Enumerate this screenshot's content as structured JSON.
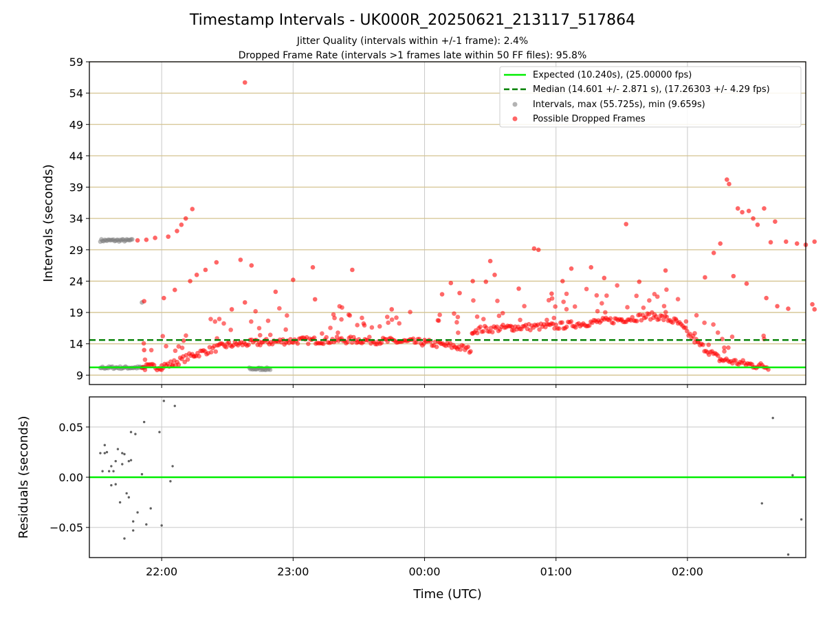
{
  "chart_data": [
    {
      "type": "scatter",
      "title": "Timestamp Intervals - UK000R_20250621_213117_517864",
      "subtitle_lines": [
        "Jitter Quality (intervals within +/-1 frame): 2.4%",
        "Dropped Frame Rate (intervals >1 frames late within 50 FF files): 95.8%"
      ],
      "ylabel": "Intervals (seconds)",
      "ylim": [
        7.5,
        59
      ],
      "yticks": [
        "59",
        "54",
        "49",
        "44",
        "39",
        "34",
        "29",
        "24",
        "19",
        "14",
        "9"
      ],
      "xlim_hours": [
        21.45,
        26.9
      ],
      "x_axis_gridlines_only": true,
      "grid": true,
      "legend_placement": "top-right",
      "legend": [
        "Expected (10.240s), (25.00000 fps)",
        "Median (14.601 +/- 2.871 s), (17.26303 +/- 4.29 fps)",
        "Intervals, max (55.725s), min (9.659s)",
        "Possible Dropped Frames"
      ],
      "expected_line": 10.24,
      "median_line": 14.601,
      "colors": {
        "expected": "#00ee00",
        "median": "#007f00",
        "intervals": "#808080",
        "dropped": "#ff0000",
        "hgrid": "#d4c38f",
        "vgrid": "#c8c8c8"
      },
      "series": [
        {
          "name": "Intervals, max (55.725s), min (9.659s)",
          "segments": [
            {
              "x0": "21:32",
              "x1": "21:47",
              "y": 30.5
            },
            {
              "x0": "21:32",
              "x1": "21:53",
              "y": 10.2
            },
            {
              "x0": "22:40",
              "x1": "22:50",
              "y": 10.0
            }
          ],
          "points": [
            {
              "x": "21:51",
              "y": 20.6
            }
          ]
        },
        {
          "name": "Possible Dropped Frames",
          "trend": [
            {
              "x": "21:51",
              "y": 10.2
            },
            {
              "x": "22:00",
              "y": 10.4
            },
            {
              "x": "22:05",
              "y": 10.8
            },
            {
              "x": "22:15",
              "y": 12.3
            },
            {
              "x": "22:30",
              "y": 13.8
            },
            {
              "x": "22:45",
              "y": 14.2
            },
            {
              "x": "23:00",
              "y": 14.5
            },
            {
              "x": "23:30",
              "y": 14.6
            },
            {
              "x": "00:00",
              "y": 14.2
            },
            {
              "x": "00:15",
              "y": 13.5
            },
            {
              "x": "00:21",
              "y": 13.0
            },
            {
              "x": "00:22",
              "y": 16.2
            },
            {
              "x": "00:40",
              "y": 16.6
            },
            {
              "x": "01:00",
              "y": 16.8
            },
            {
              "x": "01:30",
              "y": 17.9
            },
            {
              "x": "01:45",
              "y": 18.5
            },
            {
              "x": "01:55",
              "y": 17.5
            },
            {
              "x": "02:05",
              "y": 14.0
            },
            {
              "x": "02:15",
              "y": 11.5
            },
            {
              "x": "02:30",
              "y": 10.6
            },
            {
              "x": "02:37",
              "y": 10.3
            }
          ],
          "points": [
            {
              "x": "21:49",
              "y": 30.5
            },
            {
              "x": "21:53",
              "y": 30.6
            },
            {
              "x": "21:57",
              "y": 30.9
            },
            {
              "x": "22:03",
              "y": 31.1
            },
            {
              "x": "22:07",
              "y": 32.0
            },
            {
              "x": "22:09",
              "y": 33.0
            },
            {
              "x": "22:11",
              "y": 34.0
            },
            {
              "x": "22:14",
              "y": 35.5
            },
            {
              "x": "22:38",
              "y": 55.7
            },
            {
              "x": "21:52",
              "y": 20.8
            },
            {
              "x": "21:52",
              "y": 13.0
            },
            {
              "x": "22:01",
              "y": 21.3
            },
            {
              "x": "22:06",
              "y": 22.6
            },
            {
              "x": "22:10",
              "y": 14.5
            },
            {
              "x": "22:13",
              "y": 24.0
            },
            {
              "x": "22:16",
              "y": 25.0
            },
            {
              "x": "22:20",
              "y": 25.8
            },
            {
              "x": "22:25",
              "y": 27.0
            },
            {
              "x": "22:32",
              "y": 19.5
            },
            {
              "x": "22:36",
              "y": 27.4
            },
            {
              "x": "22:38",
              "y": 20.6
            },
            {
              "x": "22:41",
              "y": 26.5
            },
            {
              "x": "22:52",
              "y": 22.3
            },
            {
              "x": "23:00",
              "y": 24.2
            },
            {
              "x": "23:09",
              "y": 26.2
            },
            {
              "x": "23:10",
              "y": 21.1
            },
            {
              "x": "23:27",
              "y": 25.8
            },
            {
              "x": "23:45",
              "y": 19.5
            },
            {
              "x": "00:08",
              "y": 21.9
            },
            {
              "x": "00:12",
              "y": 23.7
            },
            {
              "x": "00:16",
              "y": 22.1
            },
            {
              "x": "00:22",
              "y": 24.0
            },
            {
              "x": "00:28",
              "y": 23.9
            },
            {
              "x": "00:30",
              "y": 27.2
            },
            {
              "x": "00:32",
              "y": 25.0
            },
            {
              "x": "00:43",
              "y": 22.8
            },
            {
              "x": "00:50",
              "y": 29.2
            },
            {
              "x": "00:52",
              "y": 29.0
            },
            {
              "x": "00:58",
              "y": 22.0
            },
            {
              "x": "01:03",
              "y": 24.0
            },
            {
              "x": "01:07",
              "y": 26.0
            },
            {
              "x": "01:16",
              "y": 26.2
            },
            {
              "x": "01:22",
              "y": 24.5
            },
            {
              "x": "01:32",
              "y": 33.1
            },
            {
              "x": "01:38",
              "y": 23.9
            },
            {
              "x": "01:50",
              "y": 25.7
            },
            {
              "x": "02:08",
              "y": 24.6
            },
            {
              "x": "02:12",
              "y": 28.5
            },
            {
              "x": "02:15",
              "y": 30.0
            },
            {
              "x": "02:18",
              "y": 40.2
            },
            {
              "x": "02:19",
              "y": 39.5
            },
            {
              "x": "02:21",
              "y": 24.8
            },
            {
              "x": "02:23",
              "y": 35.6
            },
            {
              "x": "02:25",
              "y": 35.0
            },
            {
              "x": "02:27",
              "y": 23.6
            },
            {
              "x": "02:28",
              "y": 35.2
            },
            {
              "x": "02:30",
              "y": 34.0
            },
            {
              "x": "02:32",
              "y": 33.0
            },
            {
              "x": "02:35",
              "y": 35.6
            },
            {
              "x": "02:36",
              "y": 21.3
            },
            {
              "x": "02:38",
              "y": 30.2
            },
            {
              "x": "02:40",
              "y": 33.5
            },
            {
              "x": "02:45",
              "y": 30.3
            },
            {
              "x": "02:50",
              "y": 30.0
            },
            {
              "x": "02:54",
              "y": 29.8
            },
            {
              "x": "02:58",
              "y": 30.3
            },
            {
              "x": "02:41",
              "y": 20.0
            },
            {
              "x": "02:46",
              "y": 19.6
            },
            {
              "x": "02:57",
              "y": 20.3
            },
            {
              "x": "02:58",
              "y": 19.5
            }
          ]
        }
      ]
    },
    {
      "type": "scatter",
      "title": "",
      "xlabel": "Time (UTC)",
      "ylabel": "Residuals (seconds)",
      "ylim": [
        -0.08,
        0.08
      ],
      "yticks": [
        "0.05",
        "0.00",
        "−0.05"
      ],
      "xticks": [
        "22:00",
        "23:00",
        "00:00",
        "01:00",
        "02:00"
      ],
      "zero_line_color": "#00ee00",
      "points_color": "#606060",
      "series": [
        {
          "points": [
            {
              "x": "21:32",
              "y": 0.024
            },
            {
              "x": "21:33",
              "y": 0.006
            },
            {
              "x": "21:34",
              "y": 0.024
            },
            {
              "x": "21:34",
              "y": 0.032
            },
            {
              "x": "21:35",
              "y": 0.025
            },
            {
              "x": "21:36",
              "y": 0.006
            },
            {
              "x": "21:37",
              "y": 0.011
            },
            {
              "x": "21:37",
              "y": -0.008
            },
            {
              "x": "21:38",
              "y": 0.006
            },
            {
              "x": "21:39",
              "y": -0.007
            },
            {
              "x": "21:39",
              "y": 0.016
            },
            {
              "x": "21:40",
              "y": 0.028
            },
            {
              "x": "21:41",
              "y": -0.025
            },
            {
              "x": "21:42",
              "y": 0.013
            },
            {
              "x": "21:42",
              "y": 0.024
            },
            {
              "x": "21:43",
              "y": -0.061
            },
            {
              "x": "21:43",
              "y": 0.023
            },
            {
              "x": "21:44",
              "y": -0.016
            },
            {
              "x": "21:45",
              "y": 0.016
            },
            {
              "x": "21:45",
              "y": -0.02
            },
            {
              "x": "21:46",
              "y": 0.017
            },
            {
              "x": "21:46",
              "y": 0.045
            },
            {
              "x": "21:47",
              "y": -0.044
            },
            {
              "x": "21:47",
              "y": -0.053
            },
            {
              "x": "21:48",
              "y": 0.043
            },
            {
              "x": "21:49",
              "y": -0.035
            },
            {
              "x": "21:51",
              "y": 0.003
            },
            {
              "x": "21:52",
              "y": 0.055
            },
            {
              "x": "21:53",
              "y": -0.047
            },
            {
              "x": "21:55",
              "y": -0.031
            },
            {
              "x": "21:59",
              "y": 0.045
            },
            {
              "x": "22:00",
              "y": -0.048
            },
            {
              "x": "22:01",
              "y": 0.076
            },
            {
              "x": "22:04",
              "y": -0.004
            },
            {
              "x": "22:05",
              "y": 0.011
            },
            {
              "x": "22:06",
              "y": 0.071
            },
            {
              "x": "02:34",
              "y": -0.026
            },
            {
              "x": "02:39",
              "y": 0.059
            },
            {
              "x": "02:46",
              "y": -0.077
            },
            {
              "x": "02:48",
              "y": 0.002
            },
            {
              "x": "02:52",
              "y": -0.042
            }
          ]
        }
      ]
    }
  ]
}
